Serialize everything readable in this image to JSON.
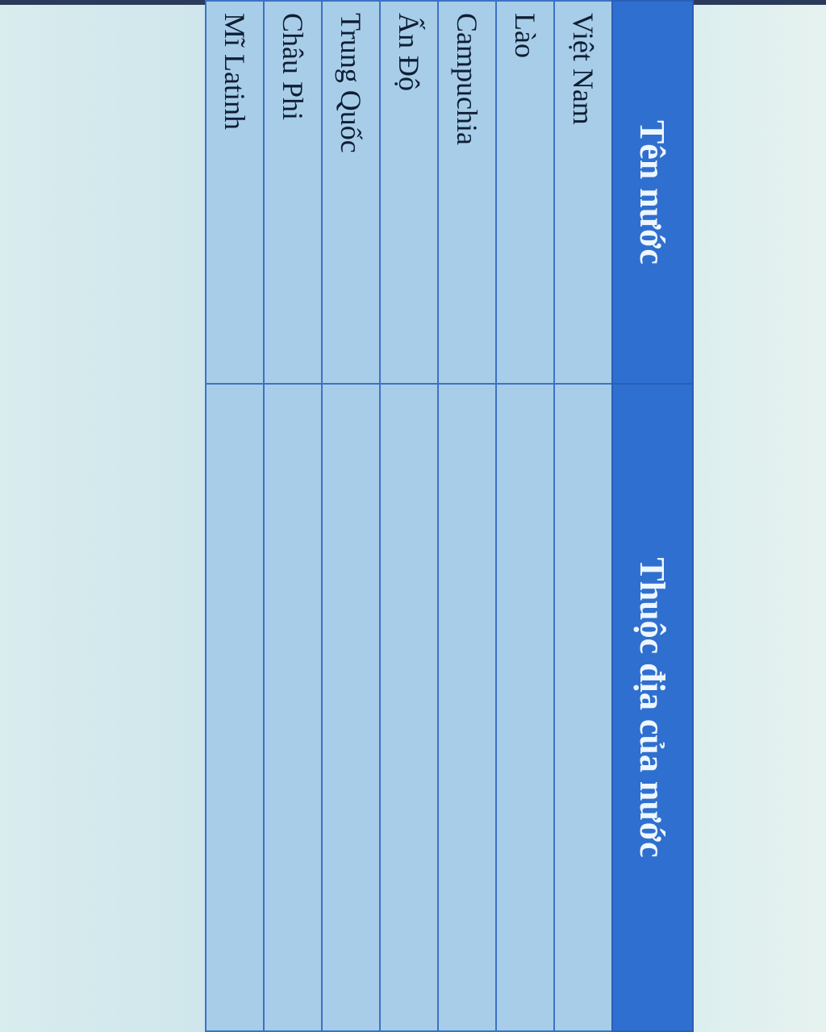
{
  "table": {
    "headers": [
      "Tên nước",
      "Thuộc địa của nước"
    ],
    "rows": [
      [
        "Việt Nam",
        ""
      ],
      [
        "Lào",
        ""
      ],
      [
        "Campuchia",
        ""
      ],
      [
        "Ấn Độ",
        ""
      ],
      [
        "Trung Quốc",
        ""
      ],
      [
        "Châu Phi",
        ""
      ],
      [
        "Mĩ Latinh",
        ""
      ]
    ]
  },
  "colors": {
    "header": "#2f6fcf",
    "cell": "#a7cde9",
    "border": "#3c72c4"
  }
}
